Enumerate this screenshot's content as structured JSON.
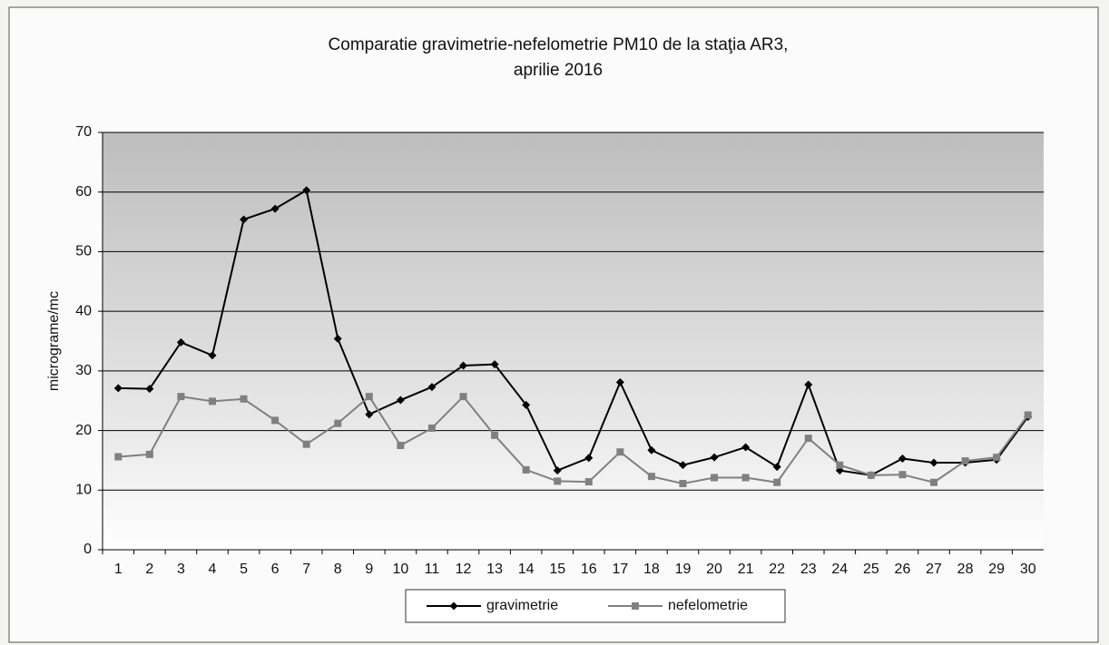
{
  "chart_data": {
    "type": "line",
    "title": [
      "Comparatie gravimetrie-nefelometrie PM10 de la staţia AR3,",
      "aprilie 2016"
    ],
    "y_label": "micrograme/mc",
    "categories": [
      "1",
      "2",
      "3",
      "4",
      "5",
      "6",
      "7",
      "8",
      "9",
      "10",
      "11",
      "12",
      "13",
      "14",
      "15",
      "16",
      "17",
      "18",
      "19",
      "20",
      "21",
      "22",
      "23",
      "24",
      "25",
      "26",
      "27",
      "28",
      "29",
      "30"
    ],
    "series": [
      {
        "name": "gravimetrie",
        "color": "#000000",
        "marker": "diamond",
        "values": [
          27.1,
          27.0,
          34.8,
          32.6,
          55.4,
          57.2,
          60.3,
          35.4,
          22.7,
          25.1,
          27.3,
          30.9,
          31.1,
          24.3,
          13.3,
          15.4,
          28.1,
          16.7,
          14.2,
          15.5,
          17.2,
          13.9,
          27.7,
          13.3,
          12.5,
          15.3,
          14.6,
          14.6,
          15.1,
          22.3
        ]
      },
      {
        "name": "nefelometrie",
        "color": "#808080",
        "marker": "square",
        "values": [
          15.6,
          16.0,
          25.7,
          24.9,
          25.3,
          21.7,
          17.7,
          21.2,
          25.7,
          17.5,
          20.4,
          25.7,
          19.2,
          13.4,
          11.5,
          11.4,
          16.4,
          12.3,
          11.1,
          12.1,
          12.1,
          11.3,
          18.7,
          14.2,
          12.5,
          12.6,
          11.3,
          14.9,
          15.5,
          22.6
        ]
      }
    ],
    "ylim": [
      0,
      70
    ],
    "yticks": [
      0,
      10,
      20,
      30,
      40,
      50,
      60,
      70
    ],
    "grid": true
  }
}
